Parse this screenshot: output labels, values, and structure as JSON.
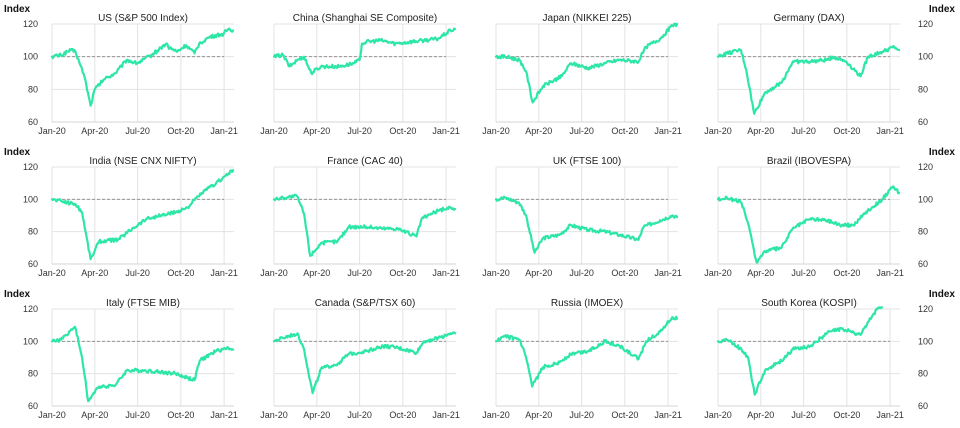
{
  "y_axis_label": "Index",
  "colors": {
    "series": "#2ee6a6",
    "reference_line": "#888888",
    "grid": "#e3e3e3"
  },
  "chart_data": [
    {
      "type": "line",
      "title": "US (S&P 500 Index)",
      "x_ticks": [
        "Jan-20",
        "Apr-20",
        "Jul-20",
        "Oct-20",
        "Jan-21"
      ],
      "ylim": [
        60,
        120
      ],
      "y_ticks": [
        60,
        80,
        100,
        120
      ],
      "reference": 100,
      "grid": true,
      "x": [
        "2020-01-01",
        "2020-01-20",
        "2020-02-10",
        "2020-02-20",
        "2020-03-01",
        "2020-03-10",
        "2020-03-23",
        "2020-04-01",
        "2020-04-20",
        "2020-05-15",
        "2020-06-08",
        "2020-06-30",
        "2020-07-31",
        "2020-08-31",
        "2020-09-04",
        "2020-09-23",
        "2020-10-12",
        "2020-10-30",
        "2020-11-09",
        "2020-12-01",
        "2020-12-31",
        "2021-01-10",
        "2021-01-20"
      ],
      "values": [
        100,
        101,
        104,
        103,
        95,
        88,
        70,
        80,
        86,
        90,
        98,
        96,
        101,
        108,
        106,
        103,
        107,
        102,
        108,
        112,
        114,
        117,
        116
      ]
    },
    {
      "type": "line",
      "title": "China (Shanghai SE Composite)",
      "x_ticks": [
        "Jan-20",
        "Apr-20",
        "Jul-20",
        "Oct-20",
        "Jan-21"
      ],
      "ylim": [
        60,
        120
      ],
      "y_ticks": [
        60,
        80,
        100,
        120
      ],
      "reference": 100,
      "grid": true,
      "x": [
        "2020-01-01",
        "2020-01-20",
        "2020-02-03",
        "2020-02-20",
        "2020-03-05",
        "2020-03-20",
        "2020-04-10",
        "2020-05-20",
        "2020-06-20",
        "2020-07-01",
        "2020-07-06",
        "2020-07-15",
        "2020-08-15",
        "2020-09-15",
        "2020-10-15",
        "2020-11-15",
        "2020-12-15",
        "2021-01-10",
        "2021-01-20"
      ],
      "values": [
        100,
        101,
        94,
        98,
        100,
        90,
        94,
        94,
        96,
        98,
        108,
        109,
        110,
        108,
        109,
        110,
        111,
        116,
        117
      ]
    },
    {
      "type": "line",
      "title": "Japan (NIKKEI 225)",
      "x_ticks": [
        "Jan-20",
        "Apr-20",
        "Jul-20",
        "Oct-20",
        "Jan-21"
      ],
      "ylim": [
        60,
        120
      ],
      "y_ticks": [
        60,
        80,
        100,
        120
      ],
      "reference": 100,
      "grid": true,
      "x": [
        "2020-01-01",
        "2020-01-20",
        "2020-02-20",
        "2020-03-05",
        "2020-03-19",
        "2020-04-10",
        "2020-05-20",
        "2020-06-08",
        "2020-07-15",
        "2020-08-20",
        "2020-09-20",
        "2020-10-30",
        "2020-11-15",
        "2020-12-15",
        "2021-01-10",
        "2021-01-20"
      ],
      "values": [
        100,
        100,
        98,
        91,
        72,
        82,
        88,
        96,
        93,
        96,
        98,
        97,
        106,
        111,
        119,
        120
      ]
    },
    {
      "type": "line",
      "title": "Germany (DAX)",
      "x_ticks": [
        "Jan-20",
        "Apr-20",
        "Jul-20",
        "Oct-20",
        "Jan-21"
      ],
      "ylim": [
        60,
        120
      ],
      "y_ticks": [
        60,
        80,
        100,
        120
      ],
      "reference": 100,
      "grid": true,
      "x": [
        "2020-01-01",
        "2020-01-20",
        "2020-02-19",
        "2020-03-01",
        "2020-03-18",
        "2020-04-10",
        "2020-05-15",
        "2020-06-08",
        "2020-07-15",
        "2020-08-20",
        "2020-09-02",
        "2020-09-30",
        "2020-10-30",
        "2020-11-15",
        "2020-12-15",
        "2021-01-10",
        "2021-01-20"
      ],
      "values": [
        100,
        102,
        104,
        92,
        65,
        78,
        84,
        97,
        97,
        98,
        100,
        97,
        88,
        100,
        103,
        106,
        104
      ]
    },
    {
      "type": "line",
      "title": "India (NSE CNX NIFTY)",
      "x_ticks": [
        "Jan-20",
        "Apr-20",
        "Jul-20",
        "Oct-20",
        "Jan-21"
      ],
      "ylim": [
        60,
        120
      ],
      "y_ticks": [
        60,
        80,
        100,
        120
      ],
      "reference": 100,
      "grid": true,
      "x": [
        "2020-01-01",
        "2020-01-20",
        "2020-02-20",
        "2020-03-05",
        "2020-03-23",
        "2020-04-10",
        "2020-05-20",
        "2020-06-20",
        "2020-07-20",
        "2020-08-20",
        "2020-09-20",
        "2020-10-15",
        "2020-11-15",
        "2020-12-15",
        "2021-01-10",
        "2021-01-20"
      ],
      "values": [
        100,
        99,
        97,
        92,
        63,
        74,
        75,
        82,
        88,
        90,
        92,
        95,
        104,
        110,
        116,
        118
      ]
    },
    {
      "type": "line",
      "title": "France (CAC 40)",
      "x_ticks": [
        "Jan-20",
        "Apr-20",
        "Jul-20",
        "Oct-20",
        "Jan-21"
      ],
      "ylim": [
        60,
        120
      ],
      "y_ticks": [
        60,
        80,
        100,
        120
      ],
      "reference": 100,
      "grid": true,
      "x": [
        "2020-01-01",
        "2020-01-20",
        "2020-02-19",
        "2020-03-05",
        "2020-03-18",
        "2020-04-10",
        "2020-05-15",
        "2020-06-08",
        "2020-07-15",
        "2020-08-20",
        "2020-09-20",
        "2020-10-30",
        "2020-11-10",
        "2020-12-15",
        "2021-01-10",
        "2021-01-20"
      ],
      "values": [
        100,
        101,
        102,
        91,
        65,
        73,
        74,
        83,
        83,
        82,
        82,
        77,
        88,
        93,
        95,
        94
      ]
    },
    {
      "type": "line",
      "title": "UK (FTSE 100)",
      "x_ticks": [
        "Jan-20",
        "Apr-20",
        "Jul-20",
        "Oct-20",
        "Jan-21"
      ],
      "ylim": [
        60,
        120
      ],
      "y_ticks": [
        60,
        80,
        100,
        120
      ],
      "reference": 100,
      "grid": true,
      "x": [
        "2020-01-01",
        "2020-01-20",
        "2020-02-19",
        "2020-03-05",
        "2020-03-23",
        "2020-04-10",
        "2020-05-15",
        "2020-06-08",
        "2020-07-15",
        "2020-08-20",
        "2020-09-20",
        "2020-10-30",
        "2020-11-10",
        "2020-12-15",
        "2021-01-10",
        "2021-01-20"
      ],
      "values": [
        100,
        101,
        98,
        90,
        67,
        76,
        78,
        84,
        81,
        80,
        78,
        75,
        83,
        87,
        90,
        89
      ]
    },
    {
      "type": "line",
      "title": "Brazil (IBOVESPA)",
      "x_ticks": [
        "Jan-20",
        "Apr-20",
        "Jul-20",
        "Oct-20",
        "Jan-21"
      ],
      "ylim": [
        60,
        120
      ],
      "y_ticks": [
        60,
        80,
        100,
        120
      ],
      "reference": 100,
      "grid": true,
      "x": [
        "2020-01-01",
        "2020-01-20",
        "2020-02-20",
        "2020-03-05",
        "2020-03-23",
        "2020-04-10",
        "2020-05-15",
        "2020-06-08",
        "2020-07-15",
        "2020-08-20",
        "2020-09-20",
        "2020-10-15",
        "2020-11-10",
        "2020-12-15",
        "2021-01-08",
        "2021-01-20"
      ],
      "values": [
        100,
        101,
        98,
        85,
        61,
        68,
        70,
        82,
        88,
        87,
        84,
        84,
        92,
        100,
        108,
        104
      ]
    },
    {
      "type": "line",
      "title": "Italy (FTSE MIB)",
      "x_ticks": [
        "Jan-20",
        "Apr-20",
        "Jul-20",
        "Oct-20",
        "Jan-21"
      ],
      "ylim": [
        60,
        120
      ],
      "y_ticks": [
        60,
        80,
        100,
        120
      ],
      "reference": 100,
      "grid": true,
      "x": [
        "2020-01-01",
        "2020-01-20",
        "2020-02-19",
        "2020-03-05",
        "2020-03-18",
        "2020-04-10",
        "2020-05-15",
        "2020-06-08",
        "2020-07-15",
        "2020-08-20",
        "2020-09-20",
        "2020-10-30",
        "2020-11-10",
        "2020-12-15",
        "2021-01-10",
        "2021-01-20"
      ],
      "values": [
        100,
        101,
        109,
        90,
        63,
        72,
        73,
        82,
        82,
        81,
        80,
        76,
        88,
        94,
        96,
        95
      ]
    },
    {
      "type": "line",
      "title": "Canada (S&P/TSX 60)",
      "x_ticks": [
        "Jan-20",
        "Apr-20",
        "Jul-20",
        "Oct-20",
        "Jan-21"
      ],
      "ylim": [
        60,
        120
      ],
      "y_ticks": [
        60,
        80,
        100,
        120
      ],
      "reference": 100,
      "grid": true,
      "x": [
        "2020-01-01",
        "2020-01-20",
        "2020-02-20",
        "2020-03-05",
        "2020-03-23",
        "2020-04-10",
        "2020-05-15",
        "2020-06-08",
        "2020-07-15",
        "2020-08-20",
        "2020-09-20",
        "2020-10-30",
        "2020-11-15",
        "2020-12-15",
        "2021-01-10",
        "2021-01-20"
      ],
      "values": [
        100,
        102,
        105,
        95,
        68,
        83,
        86,
        92,
        94,
        97,
        96,
        93,
        100,
        102,
        105,
        105
      ]
    },
    {
      "type": "line",
      "title": "Russia (IMOEX)",
      "x_ticks": [
        "Jan-20",
        "Apr-20",
        "Jul-20",
        "Oct-20",
        "Jan-21"
      ],
      "ylim": [
        60,
        120
      ],
      "y_ticks": [
        60,
        80,
        100,
        120
      ],
      "reference": 100,
      "grid": true,
      "x": [
        "2020-01-01",
        "2020-01-20",
        "2020-02-20",
        "2020-03-05",
        "2020-03-18",
        "2020-04-10",
        "2020-05-15",
        "2020-06-08",
        "2020-07-15",
        "2020-08-20",
        "2020-09-20",
        "2020-10-30",
        "2020-11-15",
        "2020-12-15",
        "2021-01-10",
        "2021-01-20"
      ],
      "values": [
        100,
        103,
        101,
        90,
        72,
        84,
        87,
        92,
        94,
        100,
        97,
        89,
        100,
        106,
        115,
        114
      ]
    },
    {
      "type": "line",
      "title": "South Korea (KOSPI)",
      "x_ticks": [
        "Jan-20",
        "Apr-20",
        "Jul-20",
        "Oct-20",
        "Jan-21"
      ],
      "ylim": [
        60,
        120
      ],
      "y_ticks": [
        60,
        80,
        100,
        120
      ],
      "reference": 100,
      "grid": true,
      "x": [
        "2020-01-01",
        "2020-01-20",
        "2020-02-20",
        "2020-03-05",
        "2020-03-19",
        "2020-04-10",
        "2020-05-15",
        "2020-06-08",
        "2020-07-15",
        "2020-08-20",
        "2020-09-20",
        "2020-10-30",
        "2020-11-15",
        "2020-12-05",
        "2020-12-15"
      ],
      "values": [
        100,
        101,
        95,
        90,
        67,
        82,
        88,
        95,
        97,
        105,
        108,
        104,
        112,
        120,
        121
      ]
    }
  ]
}
